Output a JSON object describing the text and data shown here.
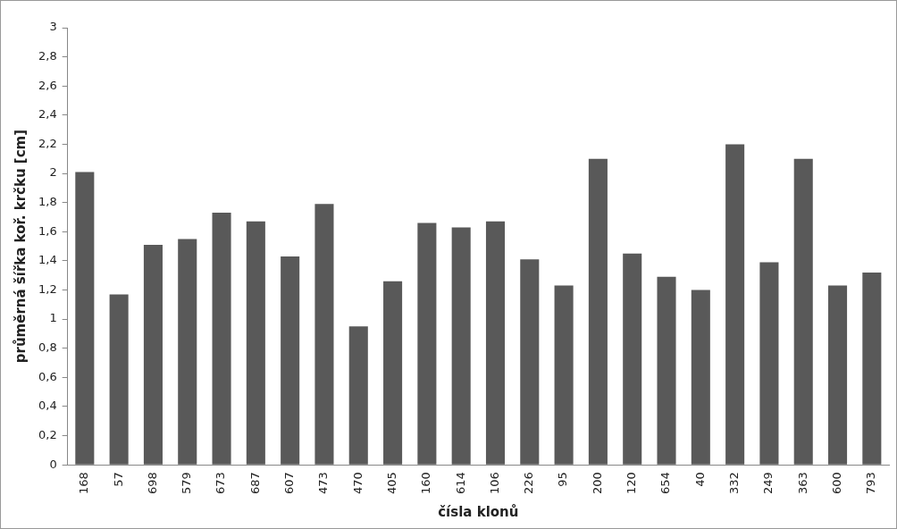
{
  "chart_data": {
    "type": "bar",
    "xlabel": "čísla klonů",
    "ylabel": "průměrná šířka koř. krčku [cm]",
    "categories": [
      "168",
      "57",
      "698",
      "579",
      "673",
      "687",
      "607",
      "473",
      "470",
      "405",
      "160",
      "614",
      "106",
      "226",
      "95",
      "200",
      "120",
      "654",
      "40",
      "332",
      "249",
      "363",
      "600",
      "793"
    ],
    "values": [
      2.01,
      1.17,
      1.51,
      1.55,
      1.73,
      1.67,
      1.43,
      1.79,
      0.95,
      1.26,
      1.66,
      1.63,
      1.67,
      1.41,
      1.23,
      2.1,
      1.45,
      1.29,
      1.2,
      2.2,
      1.39,
      2.1,
      1.23,
      1.32
    ],
    "color": "#595959",
    "ylim": [
      0,
      3
    ],
    "yticks": [
      0,
      {
        "value": 0.2,
        "label": "0,2"
      },
      {
        "value": 0.4,
        "label": "0,4"
      },
      {
        "value": 0.6,
        "label": "0,6"
      },
      {
        "value": 0.8,
        "label": "0,8"
      },
      1,
      {
        "value": 1.2,
        "label": "1,2"
      },
      {
        "value": 1.4,
        "label": "1,4"
      },
      {
        "value": 1.6,
        "label": "1,6"
      },
      {
        "value": 1.8,
        "label": "1,8"
      },
      2,
      {
        "value": 2.2,
        "label": "2,2"
      },
      {
        "value": 2.4,
        "label": "2,4"
      },
      {
        "value": 2.6,
        "label": "2,6"
      },
      {
        "value": 2.8,
        "label": "2,8"
      },
      3
    ],
    "grid": false,
    "legend": false
  }
}
